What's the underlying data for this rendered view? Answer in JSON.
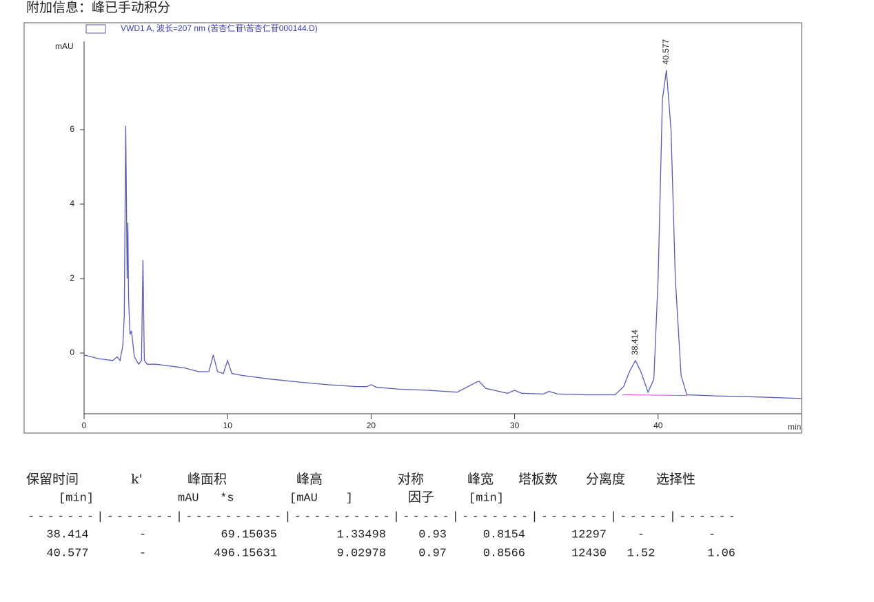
{
  "header": "附加信息：峰已手动积分",
  "chart_data": {
    "type": "line",
    "legend": "VWD1 A, 波长=207 nm (苦杏仁苷\\苦杏仁苷000144.D)",
    "ylabel": "mAU",
    "xlabel": "min",
    "xlim": [
      0,
      50
    ],
    "xticks": [
      0,
      10,
      20,
      30,
      40
    ],
    "ylim": [
      -1.63,
      8.37
    ],
    "yticks": [
      0,
      2,
      4,
      6
    ],
    "x": [
      0,
      1,
      2,
      2.3,
      2.5,
      2.7,
      2.8,
      2.9,
      3.0,
      3.05,
      3.1,
      3.2,
      3.3,
      3.5,
      3.8,
      4.0,
      4.1,
      4.2,
      4.4,
      5,
      6,
      7,
      8,
      8.7,
      9.0,
      9.3,
      9.7,
      10.0,
      10.3,
      11,
      13,
      15,
      17,
      19,
      19.7,
      20,
      20.4,
      22,
      24,
      26,
      27,
      27.5,
      28,
      29.5,
      30,
      30.5,
      32,
      32.4,
      33,
      35,
      37,
      37.6,
      38.0,
      38.414,
      38.8,
      39.3,
      39.7,
      40.0,
      40.3,
      40.577,
      40.9,
      41.2,
      41.6,
      42,
      44,
      47,
      50
    ],
    "series": [
      {
        "name": "VWD1 A",
        "color": "#5a5ab8",
        "values": [
          -0.05,
          -0.15,
          -0.2,
          -0.1,
          -0.2,
          0.2,
          1.0,
          6.1,
          2.0,
          3.5,
          1.5,
          0.5,
          0.6,
          -0.1,
          -0.3,
          -0.2,
          2.5,
          -0.2,
          -0.3,
          -0.3,
          -0.35,
          -0.4,
          -0.5,
          -0.5,
          -0.05,
          -0.5,
          -0.55,
          -0.2,
          -0.55,
          -0.6,
          -0.7,
          -0.78,
          -0.85,
          -0.9,
          -0.9,
          -0.85,
          -0.92,
          -0.97,
          -1.0,
          -1.05,
          -0.85,
          -0.75,
          -0.95,
          -1.08,
          -1.0,
          -1.08,
          -1.1,
          -1.03,
          -1.1,
          -1.12,
          -1.12,
          -0.9,
          -0.5,
          -0.2,
          -0.5,
          -1.05,
          -0.7,
          2.0,
          6.8,
          7.6,
          6.0,
          2.0,
          -0.6,
          -1.12,
          -1.15,
          -1.18,
          -1.22
        ]
      }
    ],
    "integration_baseline": {
      "x": [
        37.5,
        42
      ],
      "values": [
        -1.12,
        -1.14
      ],
      "color": "#e040e0"
    },
    "annotations": [
      {
        "text": "38.414",
        "x": 38.414,
        "y": -0.2
      },
      {
        "text": "40.577",
        "x": 40.577,
        "y": 7.6
      }
    ]
  },
  "table": {
    "header1": [
      "保留时间",
      "k'",
      "峰面积",
      "峰高",
      "对称",
      "峰宽",
      "塔板数",
      "分离度",
      "选择性"
    ],
    "header2": [
      "[min]",
      "mAU   *s",
      "[mAU    ]",
      "因子",
      "[min]"
    ],
    "separator": "-------|-------|----------|----------|-----|-------|-------|-----|------",
    "rows": [
      [
        "38.414",
        "-",
        "69.15035",
        "1.33498",
        "0.93",
        "0.8154",
        "12297",
        "-",
        "-"
      ],
      [
        "40.577",
        "-",
        "496.15631",
        "9.02978",
        "0.97",
        "0.8566",
        "12430",
        "1.52",
        "1.06"
      ]
    ]
  }
}
